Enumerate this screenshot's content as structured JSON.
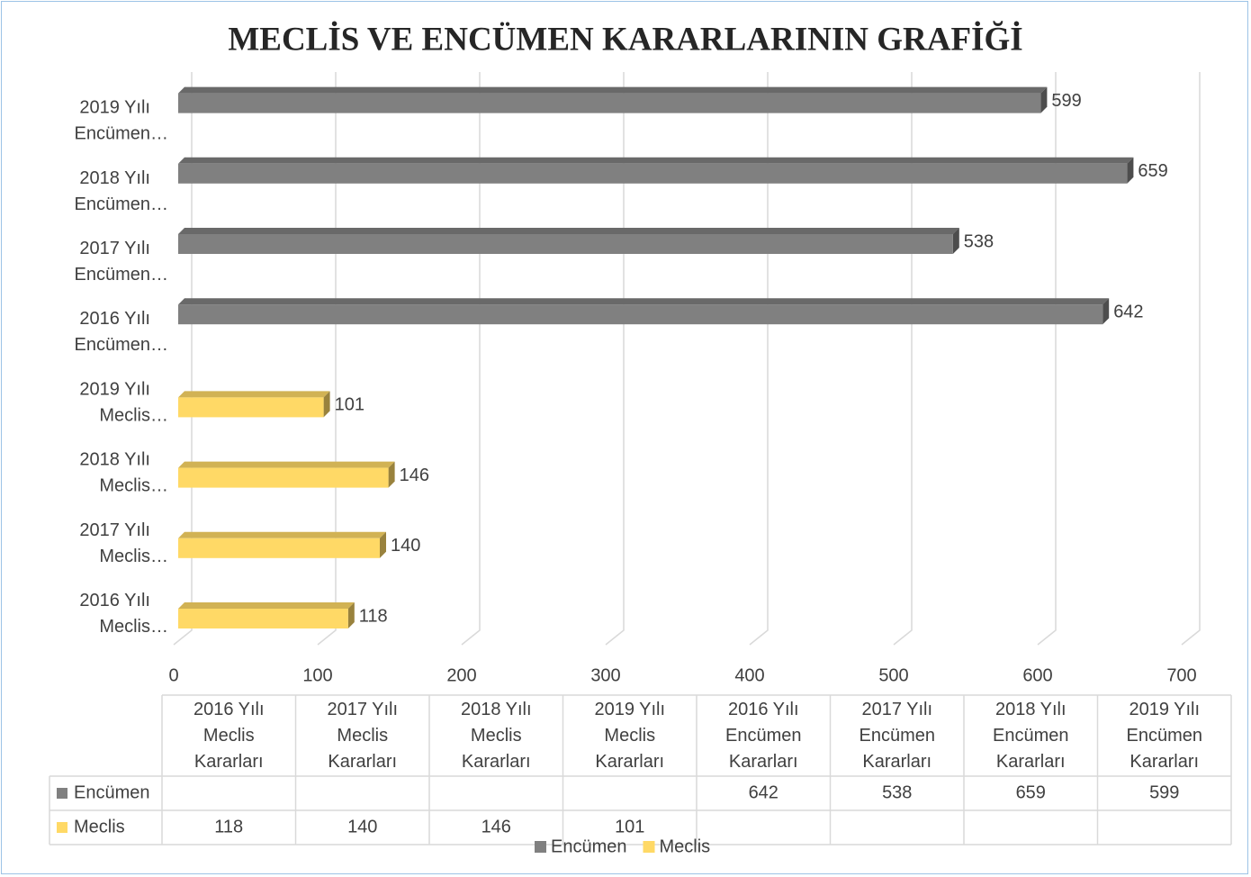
{
  "chart_data": {
    "type": "bar3d_horizontal",
    "title": "MECLİS VE ENCÜMEN KARARLARININ GRAFİĞİ",
    "categories": [
      "2016 Yılı Meclis Kararları",
      "2017 Yılı Meclis Kararları",
      "2018 Yılı Meclis Kararları",
      "2019 Yılı Meclis Kararları",
      "2016 Yılı Encümen Kararları",
      "2017 Yılı Encümen Kararları",
      "2018 Yılı Encümen Kararları",
      "2019 Yılı Encümen Kararları"
    ],
    "category_axis_labels": [
      "2016 Yılı Meclis…",
      "2017 Yılı Meclis…",
      "2018 Yılı Meclis…",
      "2019 Yılı Meclis…",
      "2016 Yılı Encümen…",
      "2017 Yılı Encümen…",
      "2018 Yılı Encümen…",
      "2019 Yılı Encümen…"
    ],
    "series": [
      {
        "name": "Encümen",
        "color": "#808080",
        "values": [
          null,
          null,
          null,
          null,
          642,
          538,
          659,
          599
        ]
      },
      {
        "name": "Meclis",
        "color": "#ffd966",
        "values": [
          118,
          140,
          146,
          101,
          null,
          null,
          null,
          null
        ]
      }
    ],
    "xlim": [
      0,
      700
    ],
    "xticks": [
      0,
      100,
      200,
      300,
      400,
      500,
      600,
      700
    ],
    "grid": true,
    "data_table": true,
    "legend": "bottom"
  }
}
